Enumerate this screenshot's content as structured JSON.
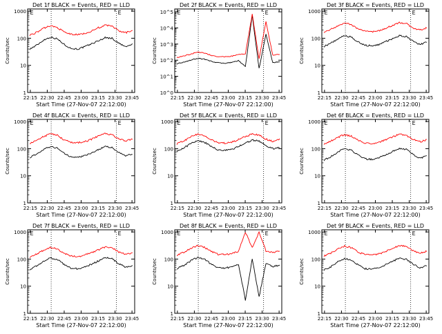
{
  "figure": {
    "background": "#ffffff",
    "colors": {
      "events": "#000000",
      "lld": "#ff0000",
      "axes": "#000000"
    }
  },
  "chart_data": [
    {
      "type": "line",
      "title": "Det 1f BLACK = Events, RED = LLD",
      "xlabel": "Start Time (27-Nov-07 22:12:00)",
      "ylabel": "Counts/sec",
      "yscale": "log",
      "ylim": [
        1,
        1200
      ],
      "x_ticks": [
        "22:15",
        "22:30",
        "22:45",
        "23:00",
        "23:15",
        "23:30",
        "23:45"
      ],
      "y_ticks": [
        "1",
        "10",
        "100",
        "1000"
      ],
      "markers": [
        "E",
        "E"
      ],
      "series": [
        {
          "key": "events",
          "values": [
            40,
            55,
            85,
            110,
            95,
            60,
            42,
            40,
            48,
            62,
            80,
            105,
            100,
            65,
            48,
            60
          ]
        },
        {
          "key": "lld",
          "values": [
            130,
            165,
            230,
            290,
            250,
            170,
            140,
            135,
            150,
            180,
            245,
            300,
            280,
            185,
            160,
            190
          ]
        }
      ]
    },
    {
      "type": "line",
      "title": "Det 2f BLACK = Events, RED = LLD",
      "xlabel": "Start Time (27-Nov-07 22:12:00)",
      "ylabel": "Counts/sec",
      "yscale": "log",
      "ylim": [
        1,
        150000
      ],
      "x_ticks": [
        "22:15",
        "22:30",
        "22:45",
        "23:00",
        "23:15",
        "23:30",
        "23:45"
      ],
      "y_ticks": [
        "10^0",
        "10^1",
        "10^2",
        "10^3",
        "10^4",
        "10^5"
      ],
      "markers": [
        "E",
        "E"
      ],
      "series": [
        {
          "key": "events",
          "values": [
            60,
            75,
            100,
            130,
            115,
            85,
            70,
            65,
            72,
            95,
            40,
            60000,
            30,
            4000,
            70,
            80
          ]
        },
        {
          "key": "lld",
          "values": [
            150,
            180,
            240,
            320,
            280,
            200,
            170,
            160,
            175,
            230,
            250,
            70000,
            120,
            25000,
            200,
            230
          ]
        }
      ]
    },
    {
      "type": "line",
      "title": "Det 3f BLACK = Events, RED = LLD",
      "xlabel": "Start Time (27-Nov-07 22:12:00)",
      "ylabel": "Counts/sec",
      "yscale": "log",
      "ylim": [
        1,
        1200
      ],
      "x_ticks": [
        "22:15",
        "22:30",
        "22:45",
        "23:00",
        "23:15",
        "23:30",
        "23:45"
      ],
      "y_ticks": [
        "1",
        "10",
        "100",
        "1000"
      ],
      "markers": [
        "E",
        "E"
      ],
      "series": [
        {
          "key": "events",
          "values": [
            50,
            65,
            95,
            125,
            110,
            72,
            55,
            52,
            58,
            75,
            95,
            125,
            115,
            78,
            60,
            70
          ]
        },
        {
          "key": "lld",
          "values": [
            170,
            210,
            290,
            360,
            320,
            220,
            180,
            175,
            190,
            230,
            300,
            380,
            350,
            240,
            200,
            240
          ]
        }
      ]
    },
    {
      "type": "line",
      "title": "Det 4f BLACK = Events, RED = LLD",
      "xlabel": "Start Time (27-Nov-07 22:12:00)",
      "ylabel": "Counts/sec",
      "yscale": "log",
      "ylim": [
        1,
        1200
      ],
      "x_ticks": [
        "22:15",
        "22:30",
        "22:45",
        "23:00",
        "23:15",
        "23:30",
        "23:45"
      ],
      "y_ticks": [
        "1",
        "10",
        "100",
        "1000"
      ],
      "markers": [
        "E",
        "E"
      ],
      "series": [
        {
          "key": "events",
          "values": [
            48,
            62,
            90,
            120,
            105,
            68,
            50,
            48,
            55,
            70,
            92,
            120,
            110,
            72,
            55,
            62
          ]
        },
        {
          "key": "lld",
          "values": [
            160,
            200,
            280,
            350,
            310,
            210,
            170,
            165,
            180,
            220,
            290,
            360,
            330,
            230,
            190,
            230
          ]
        }
      ]
    },
    {
      "type": "line",
      "title": "Det 5f BLACK = Events, RED = LLD",
      "xlabel": "Start Time (27-Nov-07 22:12:00)",
      "ylabel": "Counts/sec",
      "yscale": "log",
      "ylim": [
        1,
        1200
      ],
      "x_ticks": [
        "22:15",
        "22:30",
        "22:45",
        "23:00",
        "23:15",
        "23:30",
        "23:45"
      ],
      "y_ticks": [
        "1",
        "10",
        "100",
        "1000"
      ],
      "markers": [
        "E",
        "E"
      ],
      "series": [
        {
          "key": "events",
          "values": [
            80,
            105,
            150,
            200,
            175,
            120,
            90,
            85,
            95,
            120,
            160,
            205,
            190,
            130,
            100,
            115
          ]
        },
        {
          "key": "lld",
          "values": [
            150,
            190,
            270,
            340,
            300,
            210,
            165,
            160,
            175,
            215,
            280,
            350,
            320,
            225,
            185,
            220
          ]
        }
      ]
    },
    {
      "type": "line",
      "title": "Det 6f BLACK = Events, RED = LLD",
      "xlabel": "Start Time (27-Nov-07 22:12:00)",
      "ylabel": "Counts/sec",
      "yscale": "log",
      "ylim": [
        1,
        1200
      ],
      "x_ticks": [
        "22:15",
        "22:30",
        "22:45",
        "23:00",
        "23:15",
        "23:30",
        "23:45"
      ],
      "y_ticks": [
        "1",
        "10",
        "100",
        "1000"
      ],
      "markers": [
        "E",
        "E"
      ],
      "series": [
        {
          "key": "events",
          "values": [
            38,
            50,
            75,
            100,
            88,
            58,
            42,
            40,
            46,
            58,
            78,
            102,
            95,
            62,
            45,
            52
          ]
        },
        {
          "key": "lld",
          "values": [
            150,
            190,
            260,
            330,
            290,
            200,
            160,
            155,
            170,
            210,
            270,
            340,
            310,
            220,
            180,
            210
          ]
        }
      ]
    },
    {
      "type": "line",
      "title": "Det 7f BLACK = Events, RED = LLD",
      "xlabel": "Start Time (27-Nov-07 22:12:00)",
      "ylabel": "Counts/sec",
      "yscale": "log",
      "ylim": [
        1,
        1200
      ],
      "x_ticks": [
        "22:15",
        "22:30",
        "22:45",
        "23:00",
        "23:15",
        "23:30",
        "23:45"
      ],
      "y_ticks": [
        "1",
        "10",
        "100",
        "1000"
      ],
      "markers": [
        "E",
        "E"
      ],
      "series": [
        {
          "key": "events",
          "values": [
            42,
            55,
            82,
            110,
            98,
            64,
            46,
            44,
            50,
            64,
            85,
            112,
            104,
            68,
            50,
            56
          ]
        },
        {
          "key": "lld",
          "values": [
            120,
            150,
            210,
            270,
            240,
            165,
            130,
            125,
            140,
            170,
            220,
            280,
            260,
            180,
            150,
            170
          ]
        }
      ]
    },
    {
      "type": "line",
      "title": "Det 8f BLACK = Events, RED = LLD",
      "xlabel": "Start Time (27-Nov-07 22:12:00)",
      "ylabel": "Counts/sec",
      "yscale": "log",
      "ylim": [
        1,
        1200
      ],
      "x_ticks": [
        "22:15",
        "22:30",
        "22:45",
        "23:00",
        "23:15",
        "23:30",
        "23:45"
      ],
      "y_ticks": [
        "1",
        "10",
        "100",
        "1000"
      ],
      "markers": [
        "E",
        "E"
      ],
      "series": [
        {
          "key": "events",
          "values": [
            45,
            58,
            85,
            115,
            100,
            65,
            48,
            46,
            52,
            66,
            3,
            100,
            4,
            70,
            52,
            60
          ]
        },
        {
          "key": "lld",
          "values": [
            140,
            175,
            245,
            310,
            275,
            190,
            150,
            145,
            160,
            195,
            1000,
            270,
            1000,
            200,
            170,
            200
          ]
        }
      ]
    },
    {
      "type": "line",
      "title": "Det 9f BLACK = Events, RED = LLD",
      "xlabel": "Start Time (27-Nov-07 22:12:00)",
      "ylabel": "Counts/sec",
      "yscale": "log",
      "ylim": [
        1,
        1200
      ],
      "x_ticks": [
        "22:15",
        "22:30",
        "22:45",
        "23:00",
        "23:15",
        "23:30",
        "23:45"
      ],
      "y_ticks": [
        "1",
        "10",
        "100",
        "1000"
      ],
      "markers": [
        "E",
        "E"
      ],
      "series": [
        {
          "key": "events",
          "values": [
            40,
            52,
            78,
            105,
            92,
            60,
            44,
            42,
            48,
            62,
            82,
            108,
            100,
            66,
            48,
            56
          ]
        },
        {
          "key": "lld",
          "values": [
            130,
            165,
            230,
            300,
            265,
            180,
            145,
            140,
            155,
            190,
            250,
            310,
            290,
            200,
            165,
            195
          ]
        }
      ]
    }
  ]
}
